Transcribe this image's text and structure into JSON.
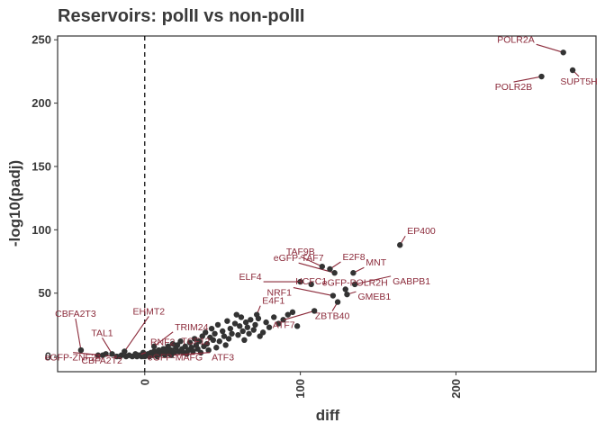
{
  "colors": {
    "point": "#333333",
    "label": "#8b2a3a",
    "axis": "#333333",
    "text": "#3a3a3a",
    "vline": "#000000"
  },
  "chart_data": {
    "type": "scatter",
    "title": "Reservoirs: polII vs non-polII",
    "xlabel": "diff",
    "ylabel": "-log10(padj)",
    "xlim": [
      -56,
      290
    ],
    "ylim": [
      -12,
      253
    ],
    "xticks": [
      0,
      100,
      200
    ],
    "yticks": [
      0,
      50,
      100,
      150,
      200,
      250
    ],
    "vline_x": 0,
    "grid": false,
    "labeled_points": [
      {
        "label": "POLR2A",
        "x": 269,
        "y": 240
      },
      {
        "label": "SUPT5H",
        "x": 275,
        "y": 226
      },
      {
        "label": "POLR2B",
        "x": 255,
        "y": 221
      },
      {
        "label": "EP400",
        "x": 164,
        "y": 88
      },
      {
        "label": "MNT",
        "x": 134,
        "y": 66
      },
      {
        "label": "E2F8",
        "x": 119,
        "y": 69
      },
      {
        "label": "TAF9B",
        "x": 114,
        "y": 71
      },
      {
        "label": "eGFP-TAF7",
        "x": 122,
        "y": 66
      },
      {
        "label": "GABPB1",
        "x": 135,
        "y": 57
      },
      {
        "label": "ELF4",
        "x": 100,
        "y": 59
      },
      {
        "label": "HCFC1",
        "x": 107,
        "y": 57
      },
      {
        "label": "eGFP-POLR2H",
        "x": 129,
        "y": 53
      },
      {
        "label": "NRF1",
        "x": 121,
        "y": 48
      },
      {
        "label": "GMEB1",
        "x": 130,
        "y": 49
      },
      {
        "label": "ZBTB40",
        "x": 124,
        "y": 43
      },
      {
        "label": "E4F1",
        "x": 72,
        "y": 33
      },
      {
        "label": "ATF7",
        "x": 109,
        "y": 36
      },
      {
        "label": "TRIM24",
        "x": 6,
        "y": 8
      },
      {
        "label": "EHMT2",
        "x": -13,
        "y": 4
      },
      {
        "label": "TAL1",
        "x": -21,
        "y": 2
      },
      {
        "label": "CBFA2T3",
        "x": -41,
        "y": 5
      },
      {
        "label": "RNF2",
        "x": 3,
        "y": 2
      },
      {
        "label": "TCF12",
        "x": 20,
        "y": 7
      },
      {
        "label": "eGFP-MAFG",
        "x": -4,
        "y": 1
      },
      {
        "label": "ATF3",
        "x": 17,
        "y": 1
      },
      {
        "label": "eGFP-ZNF24",
        "x": -27,
        "y": 1
      },
      {
        "label": "CBFA2T2",
        "x": -16,
        "y": 0
      }
    ],
    "other_points": [
      [
        -30,
        1
      ],
      [
        -25,
        2
      ],
      [
        -18,
        0
      ],
      [
        -15,
        1
      ],
      [
        -12,
        0
      ],
      [
        -10,
        1
      ],
      [
        -8,
        0
      ],
      [
        -6,
        2
      ],
      [
        -5,
        0
      ],
      [
        -3,
        1
      ],
      [
        -2,
        0
      ],
      [
        -1,
        3
      ],
      [
        0,
        0
      ],
      [
        1,
        1
      ],
      [
        2,
        2
      ],
      [
        3,
        0
      ],
      [
        4,
        3
      ],
      [
        5,
        1
      ],
      [
        6,
        4
      ],
      [
        7,
        2
      ],
      [
        8,
        0
      ],
      [
        9,
        5
      ],
      [
        10,
        2
      ],
      [
        11,
        3
      ],
      [
        12,
        6
      ],
      [
        13,
        1
      ],
      [
        14,
        4
      ],
      [
        15,
        8
      ],
      [
        16,
        2
      ],
      [
        17,
        5
      ],
      [
        18,
        10
      ],
      [
        19,
        3
      ],
      [
        21,
        9
      ],
      [
        22,
        4
      ],
      [
        23,
        12
      ],
      [
        24,
        6
      ],
      [
        25,
        3
      ],
      [
        26,
        8
      ],
      [
        27,
        2
      ],
      [
        28,
        5
      ],
      [
        29,
        11
      ],
      [
        30,
        7
      ],
      [
        31,
        4
      ],
      [
        32,
        14
      ],
      [
        33,
        9
      ],
      [
        34,
        6
      ],
      [
        35,
        12
      ],
      [
        36,
        3
      ],
      [
        37,
        16
      ],
      [
        38,
        8
      ],
      [
        39,
        19
      ],
      [
        40,
        10
      ],
      [
        41,
        5
      ],
      [
        42,
        15
      ],
      [
        43,
        22
      ],
      [
        44,
        13
      ],
      [
        45,
        18
      ],
      [
        46,
        7
      ],
      [
        47,
        25
      ],
      [
        48,
        12
      ],
      [
        50,
        20
      ],
      [
        51,
        16
      ],
      [
        52,
        9
      ],
      [
        53,
        28
      ],
      [
        54,
        14
      ],
      [
        55,
        22
      ],
      [
        56,
        18
      ],
      [
        58,
        26
      ],
      [
        59,
        33
      ],
      [
        60,
        17
      ],
      [
        61,
        24
      ],
      [
        62,
        31
      ],
      [
        63,
        20
      ],
      [
        64,
        13
      ],
      [
        65,
        27
      ],
      [
        66,
        23
      ],
      [
        67,
        18
      ],
      [
        68,
        29
      ],
      [
        70,
        21
      ],
      [
        71,
        25
      ],
      [
        73,
        30
      ],
      [
        74,
        16
      ],
      [
        76,
        19
      ],
      [
        78,
        27
      ],
      [
        80,
        23
      ],
      [
        83,
        31
      ],
      [
        86,
        26
      ],
      [
        89,
        29
      ],
      [
        92,
        33
      ],
      [
        95,
        35
      ],
      [
        98,
        24
      ]
    ]
  }
}
